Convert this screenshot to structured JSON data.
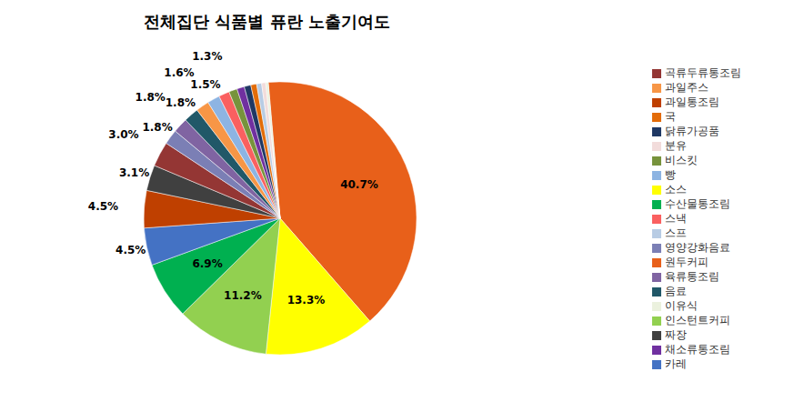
{
  "chart_data": {
    "type": "pie",
    "title": "전체집단 식품별 퓨란 노출기여도",
    "categories": [
      "원두커피",
      "소스",
      "인스턴트커피",
      "수산물통조림",
      "카레",
      "과일통조림",
      "짜장",
      "곡류두류통조림",
      "영양강화음료",
      "육류통조림",
      "음료",
      "과일주스",
      "빵",
      "스낵",
      "비스킷",
      "채소류통조림",
      "닭류가공품",
      "국",
      "스프",
      "분유",
      "이유식"
    ],
    "values": [
      40.7,
      13.3,
      11.2,
      6.9,
      4.5,
      4.5,
      3.1,
      3.0,
      1.8,
      1.8,
      1.8,
      1.6,
      1.5,
      1.3,
      1.0,
      0.9,
      0.8,
      0.7,
      0.6,
      0.5,
      0.3
    ],
    "value_labels": [
      "40.7%",
      "13.3%",
      "11.2%",
      "6.9%",
      "4.5%",
      "4.5%",
      "3.1%",
      "3.0%",
      "1.8%",
      "1.8%",
      "1.8%",
      "1.6%",
      "1.5%",
      "1.3%",
      null,
      null,
      null,
      null,
      null,
      null,
      null
    ],
    "colors": [
      "#E8601A",
      "#FFFF00",
      "#92D050",
      "#00B050",
      "#4472C4",
      "#BF4000",
      "#404040",
      "#943634",
      "#7B7FB5",
      "#8064A2",
      "#215868",
      "#F79646",
      "#8DB4E2",
      "#FA6060",
      "#77933C",
      "#7030A0",
      "#1F3864",
      "#E36C09",
      "#B8CCE4",
      "#F2DCDB",
      "#EBF1DE"
    ],
    "data_labels": true,
    "legend": "right"
  }
}
